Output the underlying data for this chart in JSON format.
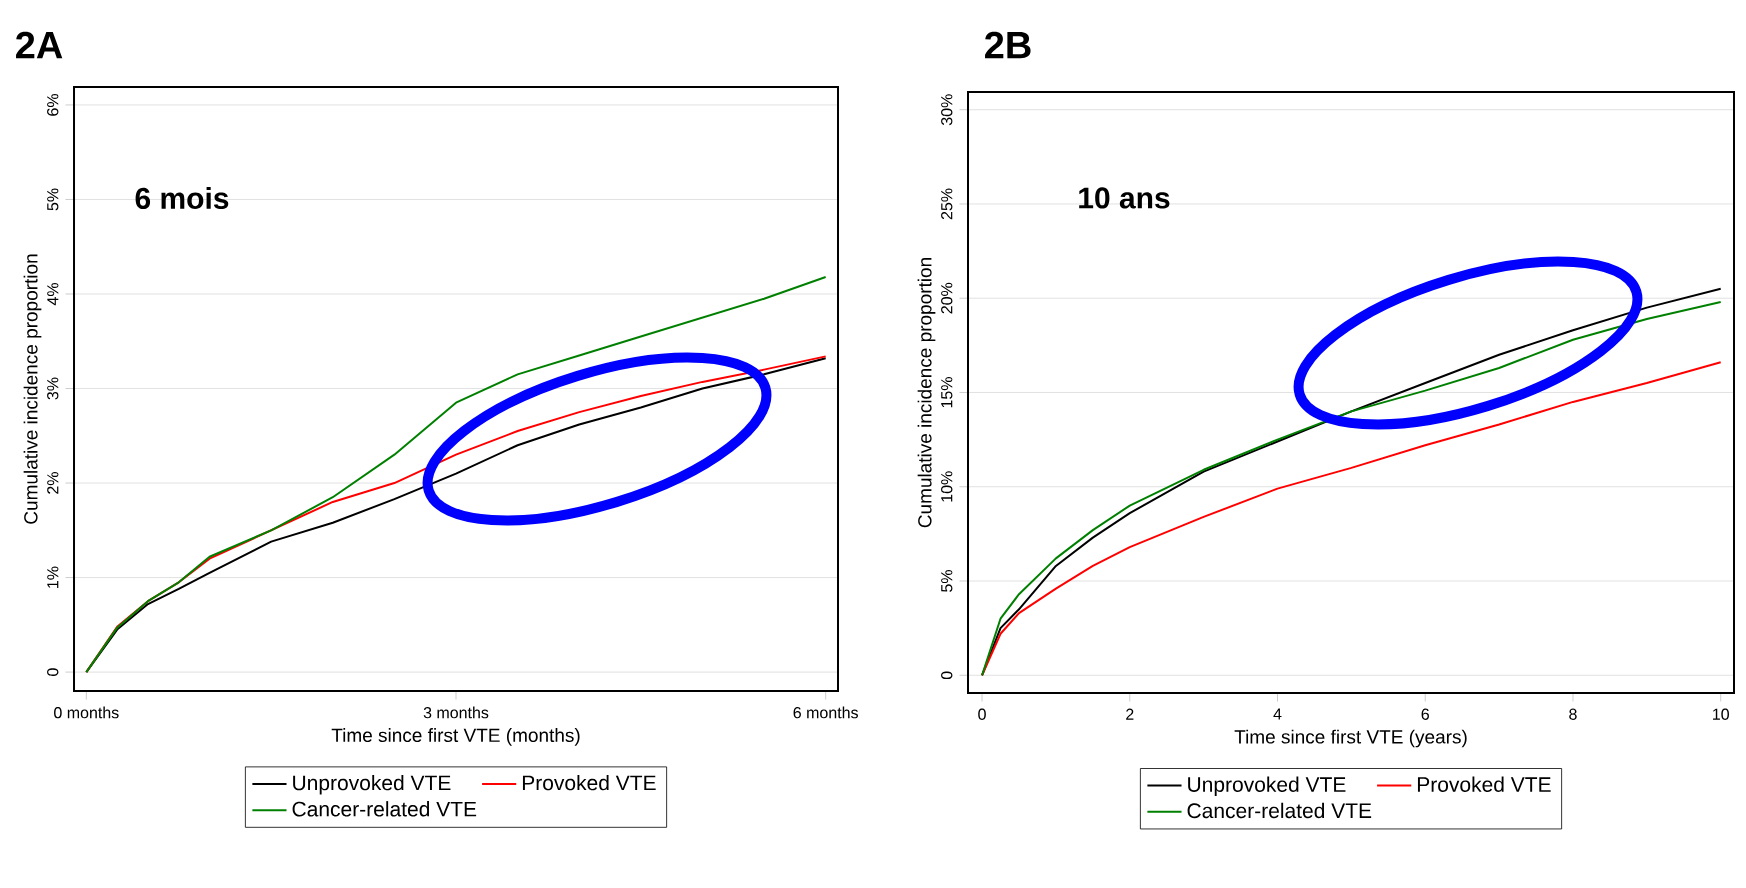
{
  "chart_data": [
    {
      "type": "line",
      "title": "2A",
      "xlabel": "Time since first VTE (months)",
      "ylabel": "Cumulative incidence proportion",
      "annotations": [
        "6 mois"
      ],
      "xlim": [
        -0.1,
        6.1
      ],
      "xticks": [
        {
          "value": 0,
          "label": "0 months"
        },
        {
          "value": 3,
          "label": "3 months"
        },
        {
          "value": 6,
          "label": "6 months"
        }
      ],
      "ylim": [
        -0.2,
        6.19
      ],
      "yticks": [
        0,
        {
          "value": 1,
          "label": "1%"
        },
        {
          "value": 2,
          "label": "2%"
        },
        {
          "value": 3,
          "label": "3%"
        },
        {
          "value": 4,
          "label": "4%"
        },
        {
          "value": 5,
          "label": "5%"
        },
        {
          "value": 6,
          "label": "6%"
        }
      ],
      "grid": "y",
      "legend": "bottom",
      "marker": "none",
      "line_style": "solid",
      "x": [
        0,
        0.25,
        0.5,
        0.75,
        1.0,
        1.5,
        2,
        2.5,
        3,
        3.5,
        4,
        4.5,
        5,
        5.5,
        6
      ],
      "series": [
        {
          "name": "Unprovoked VTE",
          "color": "#000000",
          "values": [
            0,
            0.45,
            0.72,
            0.88,
            1.05,
            1.38,
            1.58,
            1.83,
            2.1,
            2.4,
            2.62,
            2.8,
            3.0,
            3.15,
            3.32
          ]
        },
        {
          "name": "Provoked VTE",
          "color": "#ff0000",
          "values": [
            0,
            0.48,
            0.75,
            0.95,
            1.2,
            1.5,
            1.8,
            2.0,
            2.3,
            2.55,
            2.75,
            2.92,
            3.07,
            3.2,
            3.34
          ]
        },
        {
          "name": "Cancer-related VTE",
          "color": "#008000",
          "values": [
            0,
            0.47,
            0.75,
            0.95,
            1.22,
            1.5,
            1.85,
            2.3,
            2.85,
            3.15,
            3.35,
            3.55,
            3.75,
            3.95,
            4.18
          ]
        }
      ]
    },
    {
      "type": "line",
      "title": "2B",
      "xlabel": "Time since first VTE (years)",
      "ylabel": "Cumulative incidence proportion",
      "annotations": [
        "10 ans"
      ],
      "xlim": [
        -0.19,
        10.18
      ],
      "xticks": [
        0,
        2,
        4,
        6,
        8,
        10
      ],
      "ylim": [
        -0.94,
        30.94
      ],
      "yticks": [
        0,
        {
          "value": 5,
          "label": "5%"
        },
        {
          "value": 10,
          "label": "10%"
        },
        {
          "value": 15,
          "label": "15%"
        },
        {
          "value": 20,
          "label": "20%"
        },
        {
          "value": 25,
          "label": "25%"
        },
        {
          "value": 30,
          "label": "30%"
        }
      ],
      "grid": "y",
      "legend": "bottom",
      "marker": "none",
      "line_style": "solid",
      "x": [
        0,
        0.25,
        0.5,
        1,
        1.5,
        2,
        3,
        4,
        5,
        6,
        7,
        8,
        9,
        10
      ],
      "series": [
        {
          "name": "Unprovoked VTE",
          "color": "#000000",
          "values": [
            0,
            2.5,
            3.5,
            5.8,
            7.3,
            8.6,
            10.8,
            12.4,
            14.0,
            15.5,
            17.0,
            18.3,
            19.5,
            20.5
          ]
        },
        {
          "name": "Provoked VTE",
          "color": "#ff0000",
          "values": [
            0,
            2.2,
            3.3,
            4.6,
            5.8,
            6.8,
            8.4,
            9.9,
            11.0,
            12.2,
            13.3,
            14.5,
            15.5,
            16.6
          ]
        },
        {
          "name": "Cancer-related VTE",
          "color": "#008000",
          "values": [
            0,
            3.0,
            4.3,
            6.2,
            7.7,
            9.0,
            10.9,
            12.5,
            14.0,
            15.1,
            16.3,
            17.8,
            18.9,
            19.8
          ]
        }
      ]
    }
  ]
}
